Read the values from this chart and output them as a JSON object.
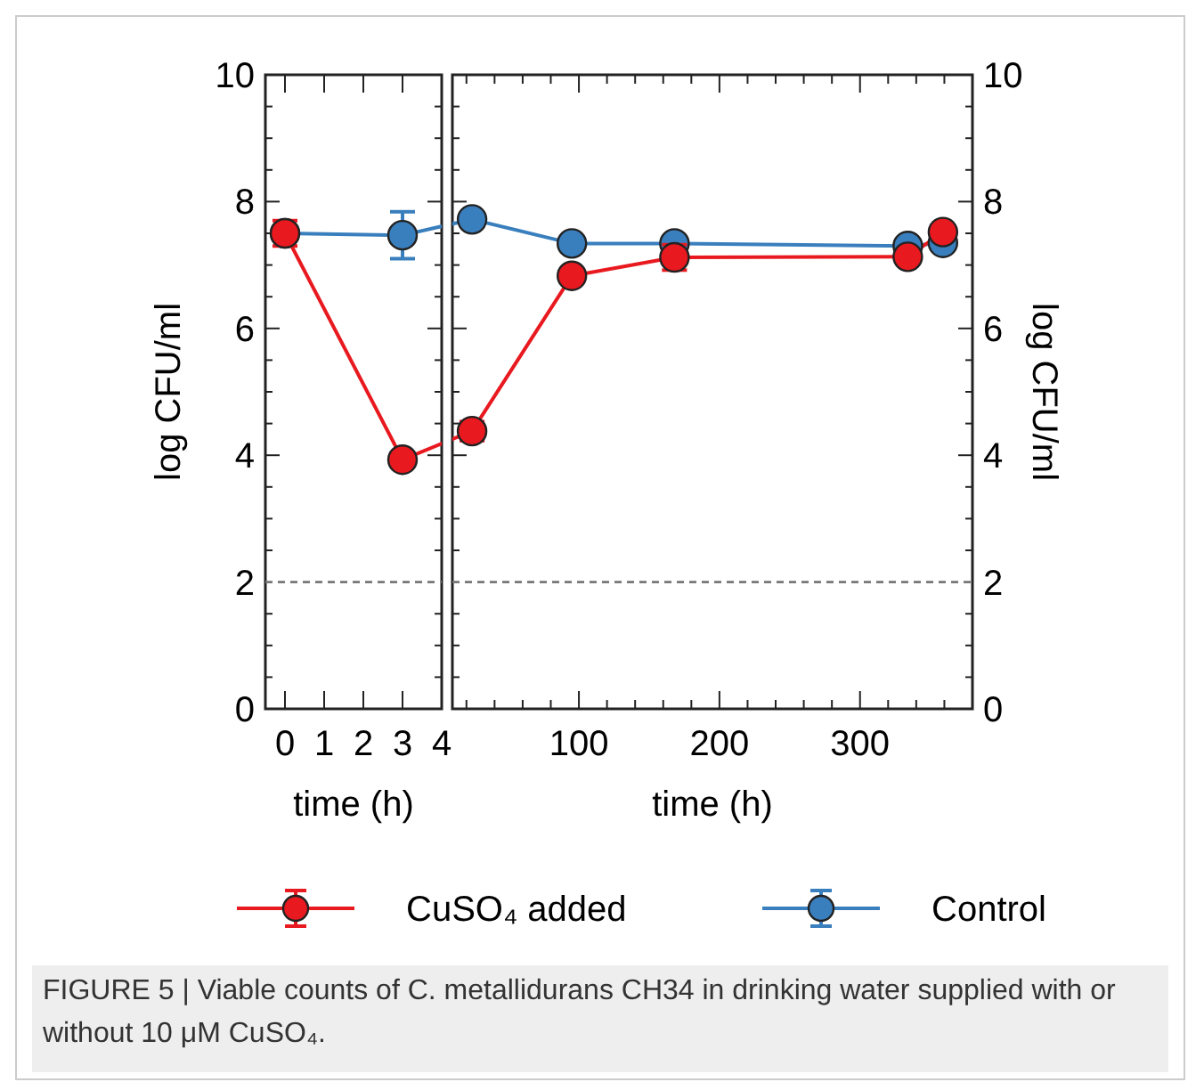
{
  "chart_data": [
    {
      "type": "line",
      "xlabel": "time (h)",
      "ylabel": "log CFU/ml",
      "x": [
        0,
        3
      ],
      "xlim": [
        -0.5,
        4
      ],
      "xticks": [
        0,
        1,
        2,
        3,
        4
      ],
      "ylim": [
        0,
        10
      ],
      "yticks": [
        0,
        {
          "value": 0.5,
          "label": null
        },
        2,
        {
          "value": 1,
          "label": null
        },
        {
          "value": 1.5,
          "label": null
        },
        {
          "value": 2.5,
          "label": null
        },
        {
          "value": 3,
          "label": null
        },
        {
          "value": 3.5,
          "label": null
        },
        4,
        {
          "value": 4.5,
          "label": null
        },
        {
          "value": 5,
          "label": null
        },
        {
          "value": 5.5,
          "label": null
        },
        6,
        {
          "value": 6.5,
          "label": null
        },
        {
          "value": 7,
          "label": null
        },
        {
          "value": 7.5,
          "label": null
        },
        8,
        {
          "value": 8.5,
          "label": null
        },
        {
          "value": 9,
          "label": null
        },
        {
          "value": 9.5,
          "label": null
        },
        10
      ],
      "marker": "circle",
      "line_style": "solid",
      "legend": "bottom",
      "grid": false,
      "series": [
        {
          "name": "CuSO₄ added",
          "color": "#e8191f",
          "values": [
            7.5,
            3.93
          ],
          "errors": [
            0.2,
            null
          ]
        },
        {
          "name": "Control",
          "color": "#3a7fbd",
          "values": [
            7.5,
            7.47
          ],
          "errors": [
            null,
            0.37
          ]
        }
      ],
      "ref_lines": [
        {
          "axis": "y",
          "value": 2,
          "color": "#777777",
          "line_style": "dashed"
        }
      ],
      "annotations": [
        "FIGURE 5 | Viable counts of C. metallidurans CH34 in drinking water supplied with or without 10 μM CuSO₄."
      ]
    },
    {
      "type": "line",
      "xlabel": "time (h)",
      "ylabel": "log CFU/ml",
      "x": [
        24,
        95,
        168,
        334,
        359
      ],
      "xlim": [
        10,
        380
      ],
      "xticks": [
        {
          "value": 20,
          "label": null
        },
        {
          "value": 40,
          "label": null
        },
        {
          "value": 60,
          "label": null
        },
        {
          "value": 80,
          "label": null
        },
        100,
        {
          "value": 120,
          "label": null
        },
        {
          "value": 140,
          "label": null
        },
        {
          "value": 160,
          "label": null
        },
        {
          "value": 180,
          "label": null
        },
        200,
        {
          "value": 220,
          "label": null
        },
        {
          "value": 240,
          "label": null
        },
        {
          "value": 260,
          "label": null
        },
        {
          "value": 280,
          "label": null
        },
        300,
        {
          "value": 320,
          "label": null
        },
        {
          "value": 340,
          "label": null
        },
        {
          "value": 360,
          "label": null
        }
      ],
      "ylim": [
        0,
        10
      ],
      "yticks": [
        0,
        {
          "value": 0.5,
          "label": null
        },
        {
          "value": 1,
          "label": null
        },
        {
          "value": 1.5,
          "label": null
        },
        2,
        {
          "value": 2.5,
          "label": null
        },
        {
          "value": 3,
          "label": null
        },
        {
          "value": 3.5,
          "label": null
        },
        4,
        {
          "value": 4.5,
          "label": null
        },
        {
          "value": 5,
          "label": null
        },
        {
          "value": 5.5,
          "label": null
        },
        6,
        {
          "value": 6.5,
          "label": null
        },
        {
          "value": 7,
          "label": null
        },
        {
          "value": 7.5,
          "label": null
        },
        8,
        {
          "value": 8.5,
          "label": null
        },
        {
          "value": 9,
          "label": null
        },
        {
          "value": 9.5,
          "label": null
        },
        10
      ],
      "marker": "circle",
      "line_style": "solid",
      "grid": false,
      "series": [
        {
          "color": "#e8191f",
          "values": [
            4.38,
            6.83,
            7.12,
            7.13,
            7.52
          ],
          "errors": [
            0.15,
            null,
            0.2,
            null,
            null
          ]
        },
        {
          "color": "#3a7fbd",
          "values": [
            7.72,
            7.34,
            7.34,
            7.3,
            7.35
          ],
          "errors": [
            null,
            null,
            null,
            null,
            null
          ]
        }
      ],
      "ref_lines": [
        {
          "axis": "y",
          "value": 2,
          "color": "#777777",
          "line_style": "dashed"
        }
      ]
    }
  ]
}
